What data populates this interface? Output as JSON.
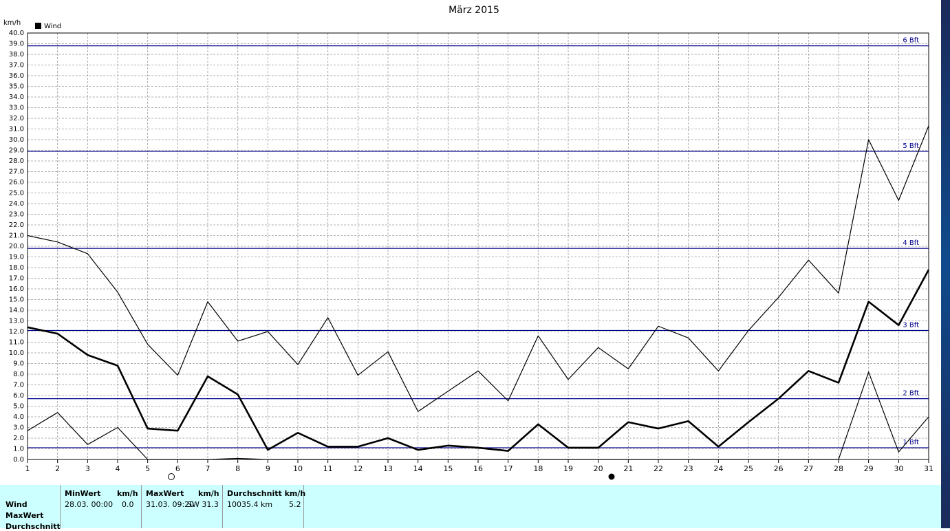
{
  "chart_data": {
    "type": "line",
    "title": "März 2015",
    "y_label": "km/h",
    "legend": "Wind",
    "x": [
      1,
      2,
      3,
      4,
      5,
      6,
      7,
      8,
      9,
      10,
      11,
      12,
      13,
      14,
      15,
      16,
      17,
      18,
      19,
      20,
      21,
      22,
      23,
      24,
      25,
      26,
      27,
      28,
      29,
      30,
      31
    ],
    "series": [
      {
        "color": "#000000",
        "line_width": 1.2,
        "values": [
          21.0,
          20.4,
          19.3,
          15.7,
          10.8,
          7.9,
          14.8,
          11.1,
          12.0,
          8.9,
          13.3,
          7.9,
          10.1,
          4.5,
          6.4,
          8.3,
          5.5,
          11.6,
          7.5,
          10.5,
          8.5,
          12.5,
          11.4,
          8.3,
          12.1,
          15.2,
          18.7,
          15.6,
          30.0,
          24.3,
          31.3
        ]
      },
      {
        "color": "#000000",
        "line_width": 2.6,
        "values": [
          12.4,
          11.8,
          9.8,
          8.8,
          2.9,
          2.7,
          7.8,
          6.1,
          0.9,
          2.5,
          1.2,
          1.2,
          2.0,
          0.9,
          1.3,
          1.1,
          0.8,
          3.3,
          1.1,
          1.1,
          3.5,
          2.9,
          3.6,
          1.2,
          3.5,
          5.7,
          8.3,
          7.2,
          14.8,
          12.6,
          17.8
        ]
      },
      {
        "color": "#000000",
        "line_width": 1.2,
        "values": [
          2.7,
          4.4,
          1.4,
          3.0,
          0.0,
          0.0,
          0.0,
          0.1,
          0.0,
          0.0,
          0.0,
          0.0,
          0.0,
          0.0,
          0.0,
          0.0,
          0.0,
          0.0,
          0.0,
          0.0,
          0.0,
          0.0,
          0.0,
          0.0,
          0.0,
          0.0,
          0.0,
          0.0,
          8.2,
          0.7,
          4.0
        ]
      }
    ],
    "xlim": [
      1,
      31
    ],
    "xticks": [
      1,
      2,
      3,
      4,
      5,
      6,
      7,
      8,
      9,
      10,
      11,
      12,
      13,
      14,
      15,
      16,
      17,
      18,
      19,
      20,
      21,
      22,
      23,
      24,
      25,
      26,
      27,
      28,
      29,
      30,
      31
    ],
    "ylim": [
      0,
      40
    ],
    "yticks": [
      {
        "value": 0,
        "label": "0.0"
      },
      {
        "value": 1,
        "label": "1.0"
      },
      {
        "value": 2,
        "label": "2.0"
      },
      {
        "value": 3,
        "label": "3.0"
      },
      {
        "value": 4,
        "label": "4.0"
      },
      {
        "value": 5,
        "label": "5.0"
      },
      {
        "value": 6,
        "label": "6.0"
      },
      {
        "value": 7,
        "label": "7.0"
      },
      {
        "value": 8,
        "label": "8.0"
      },
      {
        "value": 9,
        "label": "9.0"
      },
      {
        "value": 10,
        "label": "10.0"
      },
      {
        "value": 11,
        "label": "11.0"
      },
      {
        "value": 12,
        "label": "12.0"
      },
      {
        "value": 13,
        "label": "13.0"
      },
      {
        "value": 14,
        "label": "14.0"
      },
      {
        "value": 15,
        "label": "15.0"
      },
      {
        "value": 16,
        "label": "16.0"
      },
      {
        "value": 17,
        "label": "17.0"
      },
      {
        "value": 18,
        "label": "18.0"
      },
      {
        "value": 19,
        "label": "19.0"
      },
      {
        "value": 20,
        "label": "20.0"
      },
      {
        "value": 21,
        "label": "21.0"
      },
      {
        "value": 22,
        "label": "22.0"
      },
      {
        "value": 23,
        "label": "23.0"
      },
      {
        "value": 24,
        "label": "24.0"
      },
      {
        "value": 25,
        "label": "25.0"
      },
      {
        "value": 26,
        "label": "26.0"
      },
      {
        "value": 27,
        "label": "27.0"
      },
      {
        "value": 28,
        "label": "28.0"
      },
      {
        "value": 29,
        "label": "29.0"
      },
      {
        "value": 30,
        "label": "30.0"
      },
      {
        "value": 31,
        "label": "31.0"
      },
      {
        "value": 32,
        "label": "32.0"
      },
      {
        "value": 33,
        "label": "33.0"
      },
      {
        "value": 34,
        "label": "34.0"
      },
      {
        "value": 35,
        "label": "35.0"
      },
      {
        "value": 36,
        "label": "36.0"
      },
      {
        "value": 37,
        "label": "37.0"
      },
      {
        "value": 38,
        "label": "38.0"
      },
      {
        "value": 39,
        "label": "39.0"
      },
      {
        "value": 40,
        "label": "40.0"
      }
    ],
    "grid": true,
    "reference_lines": [
      {
        "label": "1 Bft",
        "value": 1.1
      },
      {
        "label": "2 Bft",
        "value": 5.7
      },
      {
        "label": "3 Bft",
        "value": 12.1
      },
      {
        "label": "4 Bft",
        "value": 19.8
      },
      {
        "label": "5 Bft",
        "value": 28.9
      },
      {
        "label": "6 Bft",
        "value": 38.8
      }
    ],
    "reference_color": "#00008b"
  },
  "stats": {
    "row_labels": [
      "Wind",
      "MaxWert",
      "Durchschnitt"
    ],
    "headers": [
      "MinWert",
      "km/h",
      "MaxWert",
      "km/h",
      "Durchschnitt km/h"
    ],
    "row": [
      "28.03.  00:00",
      "0.0",
      "31.03.  09:20",
      "SW 31.3",
      "10035.4 km",
      "5.2"
    ]
  }
}
